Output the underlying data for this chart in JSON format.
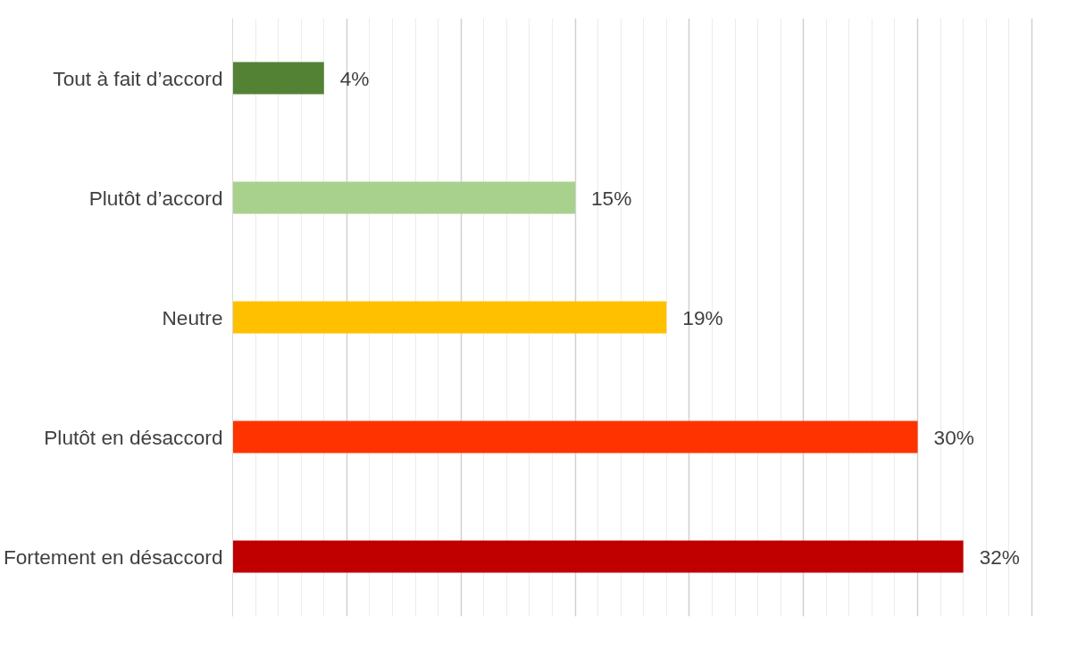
{
  "chart_data": {
    "type": "bar",
    "orientation": "horizontal",
    "categories": [
      "Tout à fait d’accord",
      "Plutôt d’accord",
      "Neutre",
      "Plutôt en désaccord",
      "Fortement en désaccord"
    ],
    "values": [
      4,
      15,
      19,
      30,
      32
    ],
    "colors": [
      "#548235",
      "#a9d18e",
      "#ffc000",
      "#ff3300",
      "#c00000"
    ],
    "value_labels": [
      "4%",
      "15%",
      "19%",
      "30%",
      "32%"
    ],
    "grid": "x",
    "tick_labels": "y"
  }
}
